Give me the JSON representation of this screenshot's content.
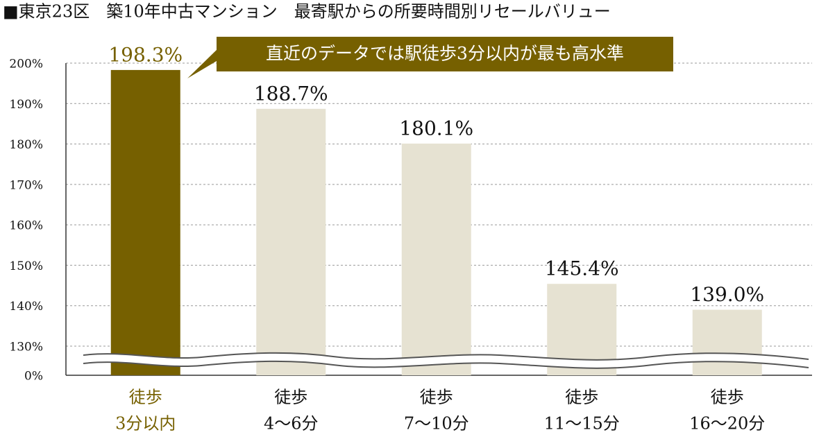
{
  "chart_data": {
    "type": "bar",
    "title": "■東京23区　築10年中古マンション　最寄駅からの所要時間別リセールバリュー",
    "annotation": "直近のデータでは駅徒歩3分以内が最も高水準",
    "categories": [
      [
        "徒歩",
        "3分以内"
      ],
      [
        "徒歩",
        "4～6分"
      ],
      [
        "徒歩",
        "7～10分"
      ],
      [
        "徒歩",
        "11～15分"
      ],
      [
        "徒歩",
        "16～20分"
      ]
    ],
    "values": [
      198.3,
      188.7,
      180.1,
      145.4,
      139.0
    ],
    "value_labels": [
      "198.3%",
      "188.7%",
      "180.1%",
      "145.4%",
      "139.0%"
    ],
    "colors": [
      "#766000",
      "#e6e2d2",
      "#e6e2d2",
      "#e6e2d2",
      "#e6e2d2"
    ],
    "ylim": [
      0,
      200
    ],
    "yticks": [
      {
        "value": 0,
        "label": "0%"
      },
      {
        "value": 130,
        "label": "130%"
      },
      {
        "value": 140,
        "label": "140%"
      },
      {
        "value": 150,
        "label": "150%"
      },
      {
        "value": 160,
        "label": "160%"
      },
      {
        "value": 170,
        "label": "170%"
      },
      {
        "value": 180,
        "label": "180%"
      },
      {
        "value": 190,
        "label": "190%"
      },
      {
        "value": 200,
        "label": "200%"
      }
    ],
    "grid": true
  }
}
